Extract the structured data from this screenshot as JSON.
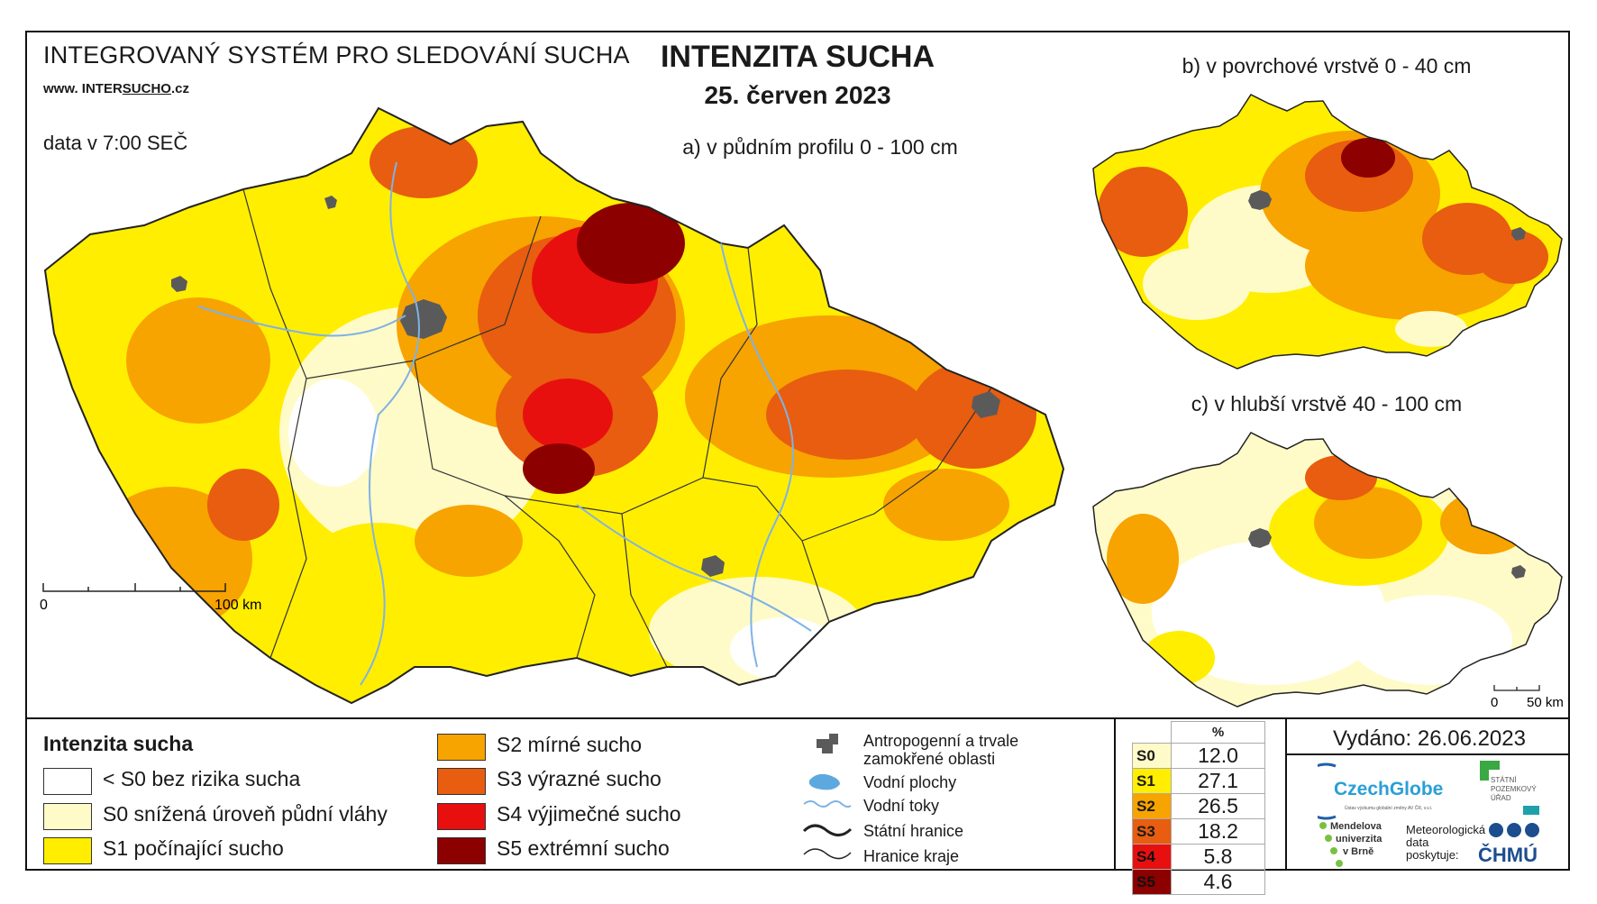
{
  "header": {
    "system_title": "INTEGROVANÝ SYSTÉM PRO SLEDOVÁNÍ SUCHA",
    "website_prefix": "www. INTER",
    "website_underlined": "SUCHO",
    "website_suffix": ".cz",
    "data_time": "data v 7:00 SEČ",
    "main_title": "INTENZITA SUCHA",
    "date": "25. červen 2023"
  },
  "maps": {
    "a_label": "a) v půdním profilu 0 - 100 cm",
    "b_label": "b) v povrchové vrstvě 0 - 40 cm",
    "c_label": "c) v hlubší vrstvě 40 - 100 cm",
    "scale_main": {
      "zero": "0",
      "end": "100 km"
    },
    "scale_small": {
      "zero": "0",
      "end": "50 km"
    }
  },
  "legend": {
    "title": "Intenzita sucha",
    "classes": [
      {
        "code": "<S0",
        "label": "< S0 bez rizika sucha",
        "color": "#ffffff"
      },
      {
        "code": "S0",
        "label": "S0 snížená úroveň půdní vláhy",
        "color": "#fffbc8"
      },
      {
        "code": "S1",
        "label": "S1 počínající sucho",
        "color": "#ffee00"
      },
      {
        "code": "S2",
        "label": "S2 mírné sucho",
        "color": "#f7a300"
      },
      {
        "code": "S3",
        "label": "S3 výrazné sucho",
        "color": "#e85d0f"
      },
      {
        "code": "S4",
        "label": "S4 výjimečné sucho",
        "color": "#e8100f"
      },
      {
        "code": "S5",
        "label": "S5 extrémní sucho",
        "color": "#8c0000"
      }
    ],
    "symbols": [
      {
        "icon": "built-up-area-icon",
        "label": "Antropogenní a trvale zamokřené oblasti"
      },
      {
        "icon": "water-body-icon",
        "label": "Vodní plochy"
      },
      {
        "icon": "river-icon",
        "label": "Vodní toky"
      },
      {
        "icon": "state-border-icon",
        "label": "Státní hranice"
      },
      {
        "icon": "region-border-icon",
        "label": "Hranice kraje"
      }
    ]
  },
  "stats": {
    "header": "%",
    "rows": [
      {
        "class": "S0",
        "value": "12.0",
        "color": "#fffbc8"
      },
      {
        "class": "S1",
        "value": "27.1",
        "color": "#ffee00"
      },
      {
        "class": "S2",
        "value": "26.5",
        "color": "#f7a300"
      },
      {
        "class": "S3",
        "value": "18.2",
        "color": "#e85d0f"
      },
      {
        "class": "S4",
        "value": "5.8",
        "color": "#e8100f"
      },
      {
        "class": "S5",
        "value": "4.6",
        "color": "#8c0000"
      }
    ]
  },
  "footer": {
    "issued": "Vydáno: 26.06.2023",
    "czechglobe": "CzechGlobe",
    "czechglobe_sub": "Ústav výzkumu globální změny AV ČR, v.v.i.",
    "spu_lines": [
      "STÁTNÍ",
      "POZEMKOVÝ",
      "ÚŘAD"
    ],
    "mendel_lines": [
      "Mendelova",
      "univerzita",
      "v Brně"
    ],
    "meteo_lines": [
      "Meteorologická",
      "data",
      "poskytuje:"
    ],
    "chmu": "ČHMÚ"
  }
}
